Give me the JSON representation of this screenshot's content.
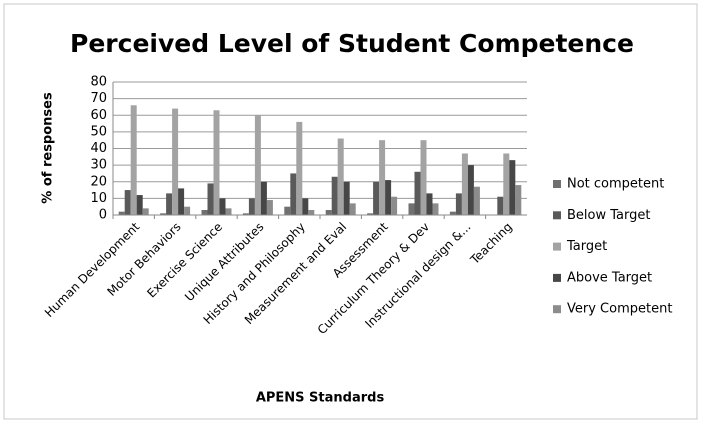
{
  "chart_data": {
    "type": "bar",
    "title": "Perceived Level of Student Competence",
    "x_label": "APENS Standards",
    "y_label": "% of responses",
    "categories": [
      "Human Development",
      "Motor Behaviors",
      "Exercise Science",
      "Unique Attributes",
      "History and Philosophy",
      "Measurement and Eval",
      "Assessment",
      "Curriculum Theory & Dev",
      "Instructional design &...",
      "Teaching"
    ],
    "series": [
      {
        "name": "Not competent",
        "color": "#707070",
        "values": [
          2,
          1,
          3,
          1,
          5,
          3,
          1,
          7,
          2,
          0
        ]
      },
      {
        "name": "Below Target",
        "color": "#5a5a5a",
        "values": [
          15,
          13,
          19,
          10,
          25,
          23,
          20,
          26,
          13,
          11
        ]
      },
      {
        "name": "Target",
        "color": "#a3a3a3",
        "values": [
          66,
          64,
          63,
          60,
          56,
          46,
          45,
          45,
          37,
          37
        ]
      },
      {
        "name": "Above Target",
        "color": "#474747",
        "values": [
          12,
          16,
          10,
          20,
          10,
          20,
          21,
          13,
          30,
          33
        ]
      },
      {
        "name": "Very Competent",
        "color": "#8c8c8c",
        "values": [
          4,
          5,
          4,
          9,
          3,
          7,
          11,
          7,
          17,
          18
        ]
      }
    ],
    "ylim": [
      0,
      80
    ],
    "yticks": [
      0,
      10,
      20,
      30,
      40,
      50,
      60,
      70,
      80
    ],
    "grid": true,
    "legend": "right"
  }
}
